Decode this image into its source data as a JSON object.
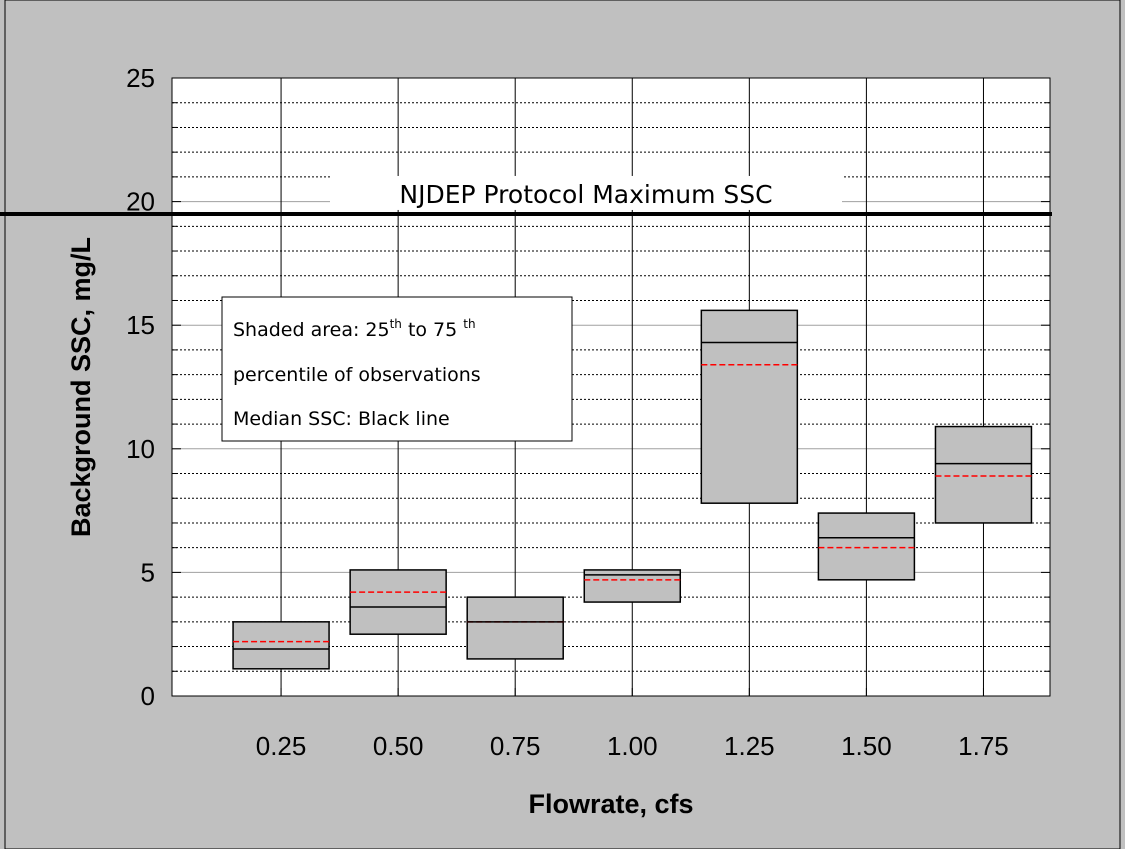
{
  "chart_data": {
    "type": "box",
    "xlabel": "Flowrate, cfs",
    "ylabel": "Background SSC, mg/L",
    "ylim": [
      0,
      25
    ],
    "yticks": [
      "0",
      "5",
      "10",
      "15",
      "20",
      "25"
    ],
    "categories": [
      "0.25",
      "0.50",
      "0.75",
      "1.00",
      "1.25",
      "1.50",
      "1.75"
    ],
    "boxes": [
      {
        "category": "0.25",
        "q1": 1.1,
        "q3": 3.0,
        "median": 1.9,
        "mean": 2.2
      },
      {
        "category": "0.50",
        "q1": 2.5,
        "q3": 5.1,
        "median": 3.6,
        "mean": 4.2
      },
      {
        "category": "0.75",
        "q1": 1.5,
        "q3": 4.0,
        "median": 3.0,
        "mean": 3.0
      },
      {
        "category": "1.00",
        "q1": 3.8,
        "q3": 5.1,
        "median": 4.9,
        "mean": 4.7
      },
      {
        "category": "1.25",
        "q1": 7.8,
        "q3": 15.6,
        "median": 14.3,
        "mean": 13.4
      },
      {
        "category": "1.50",
        "q1": 4.7,
        "q3": 7.4,
        "median": 6.4,
        "mean": 6.0
      },
      {
        "category": "1.75",
        "q1": 7.0,
        "q3": 10.9,
        "median": 9.4,
        "mean": 8.9
      }
    ],
    "reference_line": {
      "value": 19.5,
      "label": "NJDEP Protocol Maximum SSC"
    },
    "annotation": {
      "line1_a": "Shaded  area:  25",
      "line1_sup1": "th",
      "line1_b": "  to  75 ",
      "line1_sup2": "th",
      "line2": "percentile of observations",
      "line3": "Median SSC: Black line"
    },
    "grid": true,
    "colors": {
      "box_fill": "#c0c0c0",
      "mean_line": "#ff0000",
      "median_line": "#000000",
      "background": "#c0c0c0",
      "plot_background": "#ffffff"
    }
  }
}
